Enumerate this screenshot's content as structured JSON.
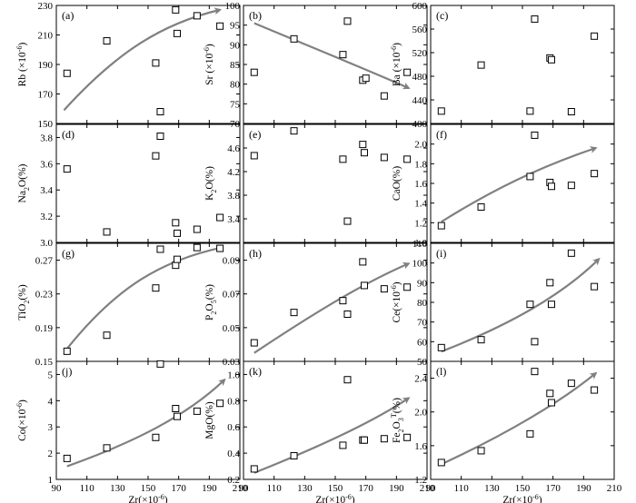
{
  "chart_data": [
    {
      "id": "a",
      "type": "scatter",
      "panel_label": "(a)",
      "ylabel": "Rb (×10⁻⁶)",
      "ylabel_main": "Rb (×10",
      "ylabel_sup": "-6",
      "ylabel_tail": ")",
      "ylim": [
        150,
        230
      ],
      "yticks": [
        150,
        170,
        190,
        210,
        230
      ],
      "xlim": [
        90,
        210
      ],
      "xticks": [
        90,
        110,
        130,
        150,
        170,
        190,
        210
      ],
      "xlabel": "",
      "points": [
        [
          97,
          184
        ],
        [
          123,
          206
        ],
        [
          155,
          191
        ],
        [
          158,
          158
        ],
        [
          168,
          227
        ],
        [
          169,
          211
        ],
        [
          182,
          223
        ],
        [
          197,
          216
        ]
      ],
      "trend": {
        "type": "curve",
        "points": [
          [
            95,
            159
          ],
          [
            130,
            199
          ],
          [
            160,
            218
          ],
          [
            197,
            227
          ]
        ]
      }
    },
    {
      "id": "b",
      "type": "scatter",
      "panel_label": "(b)",
      "ylabel": "Sr (×10⁻⁶)",
      "ylabel_main": "Sr (×10",
      "ylabel_sup": "-6",
      "ylabel_tail": ")",
      "ylim": [
        70,
        100
      ],
      "yticks": [
        70,
        75,
        80,
        85,
        90,
        95,
        100
      ],
      "xlim": [
        90,
        210
      ],
      "xticks": [
        90,
        110,
        130,
        150,
        170,
        190,
        210
      ],
      "xlabel": "",
      "points": [
        [
          97,
          83
        ],
        [
          123,
          91.5
        ],
        [
          155,
          87.5
        ],
        [
          158,
          96
        ],
        [
          168,
          81
        ],
        [
          170,
          81.5
        ],
        [
          182,
          77
        ],
        [
          197,
          83
        ]
      ],
      "trend": {
        "type": "curve",
        "points": [
          [
            97,
            95.5
          ],
          [
            140,
            88.5
          ],
          [
            175,
            83
          ],
          [
            198,
            79
          ]
        ]
      }
    },
    {
      "id": "c",
      "type": "scatter",
      "panel_label": "(c)",
      "ylabel": "Ba (×10⁻⁶)",
      "ylabel_main": "Ba (×10",
      "ylabel_sup": "-6",
      "ylabel_tail": ")",
      "ylim": [
        400,
        600
      ],
      "yticks": [
        400,
        440,
        480,
        520,
        560,
        600
      ],
      "xlim": [
        90,
        210
      ],
      "xticks": [
        90,
        110,
        130,
        150,
        170,
        190,
        210
      ],
      "xlabel": "",
      "points": [
        [
          97,
          421
        ],
        [
          123,
          499
        ],
        [
          155,
          421
        ],
        [
          158,
          577
        ],
        [
          168,
          511
        ],
        [
          169,
          508
        ],
        [
          182,
          420
        ],
        [
          197,
          548
        ]
      ],
      "trend": null
    },
    {
      "id": "d",
      "type": "scatter",
      "panel_label": "(d)",
      "ylabel": "Na₂O(%)",
      "ylabel_main": "Na",
      "ylabel_sub": "2",
      "ylabel_tail": "O(%)",
      "ylim": [
        3.0,
        3.9
      ],
      "yticks": [
        3.0,
        3.2,
        3.4,
        3.6,
        3.8
      ],
      "xlim": [
        90,
        210
      ],
      "xticks": [
        90,
        110,
        130,
        150,
        170,
        190,
        210
      ],
      "xlabel": "",
      "points": [
        [
          97,
          3.56
        ],
        [
          123,
          3.08
        ],
        [
          155,
          3.66
        ],
        [
          158,
          3.81
        ],
        [
          168,
          3.15
        ],
        [
          169,
          3.07
        ],
        [
          182,
          3.1
        ],
        [
          197,
          3.19
        ]
      ],
      "trend": null
    },
    {
      "id": "e",
      "type": "scatter",
      "panel_label": "(e)",
      "ylabel": "K₂O(%)",
      "ylabel_main": "K",
      "ylabel_sub": "2",
      "ylabel_tail": "O(%)",
      "ylim": [
        3.0,
        5.0
      ],
      "yticks": [
        3.4,
        3.8,
        4.2,
        4.6
      ],
      "xlim": [
        90,
        210
      ],
      "xticks": [
        90,
        110,
        130,
        150,
        170,
        190,
        210
      ],
      "xlabel": "",
      "points": [
        [
          97,
          4.47
        ],
        [
          123,
          4.89
        ],
        [
          155,
          4.41
        ],
        [
          158,
          3.36
        ],
        [
          168,
          4.66
        ],
        [
          169,
          4.52
        ],
        [
          182,
          4.44
        ],
        [
          197,
          4.41
        ]
      ],
      "trend": null
    },
    {
      "id": "f",
      "type": "scatter",
      "panel_label": "(f)",
      "ylabel": "CaO(%)",
      "ylabel_main": "CaO(%)",
      "ylim": [
        1.0,
        2.2
      ],
      "yticks": [
        1.0,
        1.2,
        1.4,
        1.6,
        1.8,
        2.0
      ],
      "xlim": [
        90,
        210
      ],
      "xticks": [
        90,
        110,
        130,
        150,
        170,
        190,
        210
      ],
      "xlabel": "",
      "points": [
        [
          97,
          1.17
        ],
        [
          123,
          1.36
        ],
        [
          155,
          1.67
        ],
        [
          158,
          2.09
        ],
        [
          168,
          1.61
        ],
        [
          169,
          1.57
        ],
        [
          182,
          1.58
        ],
        [
          197,
          1.7
        ]
      ],
      "trend": {
        "type": "curve",
        "points": [
          [
            97,
            1.21
          ],
          [
            130,
            1.53
          ],
          [
            160,
            1.76
          ],
          [
            198,
            1.96
          ]
        ]
      }
    },
    {
      "id": "g",
      "type": "scatter",
      "panel_label": "(g)",
      "ylabel": "TiO₂(%)",
      "ylabel_main": "TiO",
      "ylabel_sub": "2",
      "ylabel_tail": "(%)",
      "ylim": [
        0.15,
        0.29
      ],
      "yticks": [
        0.15,
        0.19,
        0.23,
        0.27
      ],
      "xlim": [
        90,
        210
      ],
      "xticks": [
        90,
        110,
        130,
        150,
        170,
        190,
        210
      ],
      "xlabel": "",
      "points": [
        [
          97,
          0.162
        ],
        [
          123,
          0.181
        ],
        [
          155,
          0.237
        ],
        [
          158,
          0.283
        ],
        [
          168,
          0.264
        ],
        [
          169,
          0.271
        ],
        [
          182,
          0.285
        ],
        [
          197,
          0.284
        ]
      ],
      "trend": {
        "type": "curve",
        "points": [
          [
            97,
            0.165
          ],
          [
            130,
            0.24
          ],
          [
            160,
            0.27
          ],
          [
            198,
            0.285
          ]
        ]
      }
    },
    {
      "id": "h",
      "type": "scatter",
      "panel_label": "(h)",
      "ylabel": "P₂O₅(%)",
      "ylabel_main": "P",
      "ylabel_sub": "2",
      "ylabel_mid": "O",
      "ylabel_sub2": "5",
      "ylabel_tail": "(%)",
      "ylim": [
        0.03,
        0.1
      ],
      "yticks": [
        0.03,
        0.05,
        0.07,
        0.09
      ],
      "xlim": [
        90,
        210
      ],
      "xticks": [
        90,
        110,
        130,
        150,
        170,
        190,
        210
      ],
      "xlabel": "",
      "points": [
        [
          97,
          0.041
        ],
        [
          123,
          0.059
        ],
        [
          155,
          0.066
        ],
        [
          158,
          0.058
        ],
        [
          168,
          0.089
        ],
        [
          169,
          0.075
        ],
        [
          182,
          0.073
        ],
        [
          197,
          0.074
        ]
      ],
      "trend": {
        "type": "curve",
        "points": [
          [
            97,
            0.035
          ],
          [
            140,
            0.061
          ],
          [
            170,
            0.077
          ],
          [
            198,
            0.088
          ]
        ]
      }
    },
    {
      "id": "i",
      "type": "scatter",
      "panel_label": "(i)",
      "ylabel": "Ce(×10⁻⁶)",
      "ylabel_main": "Ce(×10",
      "ylabel_sup": "-6",
      "ylabel_tail": ")",
      "ylim": [
        50,
        110
      ],
      "yticks": [
        50,
        60,
        70,
        80,
        90,
        100,
        110
      ],
      "xlim": [
        90,
        210
      ],
      "xticks": [
        90,
        110,
        130,
        150,
        170,
        190,
        210
      ],
      "xlabel": "",
      "points": [
        [
          97,
          57
        ],
        [
          123,
          61
        ],
        [
          155,
          79
        ],
        [
          158,
          60
        ],
        [
          168,
          90
        ],
        [
          169,
          79
        ],
        [
          182,
          105
        ],
        [
          197,
          88
        ]
      ],
      "trend": {
        "type": "curve",
        "points": [
          [
            97,
            55
          ],
          [
            140,
            68
          ],
          [
            175,
            83
          ],
          [
            200,
            102
          ]
        ]
      }
    },
    {
      "id": "j",
      "type": "scatter",
      "panel_label": "(j)",
      "ylabel": "Co(×10⁻⁶)",
      "ylabel_main": "Co(×10",
      "ylabel_sup": "-6",
      "ylabel_tail": ")",
      "ylim": [
        1,
        5.5
      ],
      "yticks": [
        1,
        2,
        3,
        4,
        5
      ],
      "xlim": [
        90,
        210
      ],
      "xticks": [
        90,
        110,
        130,
        150,
        170,
        190,
        210
      ],
      "xlabel": "Zr(×10⁻⁶)",
      "xlabel_main": "Zr(×10",
      "xlabel_sup": "-6",
      "xlabel_tail": ")",
      "points": [
        [
          97,
          1.8
        ],
        [
          123,
          2.2
        ],
        [
          155,
          2.6
        ],
        [
          158,
          5.4
        ],
        [
          168,
          3.7
        ],
        [
          169,
          3.4
        ],
        [
          182,
          3.6
        ],
        [
          197,
          3.9
        ]
      ],
      "trend": {
        "type": "curve",
        "points": [
          [
            97,
            1.5
          ],
          [
            140,
            2.4
          ],
          [
            175,
            3.4
          ],
          [
            200,
            4.8
          ]
        ]
      }
    },
    {
      "id": "k",
      "type": "scatter",
      "panel_label": "(k)",
      "ylabel": "MgO(%)",
      "ylabel_main": "MgO(%)",
      "ylim": [
        0.2,
        1.1
      ],
      "yticks": [
        0.2,
        0.4,
        0.6,
        0.8,
        1.0
      ],
      "xlim": [
        90,
        210
      ],
      "xticks": [
        90,
        110,
        130,
        150,
        170,
        190,
        210
      ],
      "xlabel": "Zr(×10⁻⁶)",
      "xlabel_main": "Zr(×10",
      "xlabel_sup": "-6",
      "xlabel_tail": ")",
      "points": [
        [
          97,
          0.28
        ],
        [
          123,
          0.38
        ],
        [
          155,
          0.46
        ],
        [
          158,
          0.96
        ],
        [
          168,
          0.5
        ],
        [
          169,
          0.5
        ],
        [
          182,
          0.51
        ],
        [
          197,
          0.52
        ]
      ],
      "trend": {
        "type": "curve",
        "points": [
          [
            97,
            0.25
          ],
          [
            140,
            0.45
          ],
          [
            175,
            0.64
          ],
          [
            198,
            0.82
          ]
        ]
      }
    },
    {
      "id": "l",
      "type": "scatter",
      "panel_label": "(l)",
      "ylabel": "Fe₂O₃ᵀ(%)",
      "ylabel_main": "Fe",
      "ylabel_sub": "2",
      "ylabel_mid": "O",
      "ylabel_sub2": "3",
      "ylabel_sup": "T",
      "ylabel_tail": "(%)",
      "ylim": [
        1.2,
        2.6
      ],
      "yticks": [
        1.2,
        1.6,
        2.0,
        2.4
      ],
      "xlim": [
        90,
        210
      ],
      "xticks": [
        90,
        110,
        130,
        150,
        170,
        190,
        210
      ],
      "xlabel": "Zr(×10⁻⁶)",
      "xlabel_main": "Zr(×10",
      "xlabel_sup": "-6",
      "xlabel_tail": ")",
      "points": [
        [
          97,
          1.4
        ],
        [
          123,
          1.54
        ],
        [
          155,
          1.74
        ],
        [
          158,
          2.48
        ],
        [
          168,
          2.22
        ],
        [
          169,
          2.11
        ],
        [
          182,
          2.34
        ],
        [
          197,
          2.26
        ]
      ],
      "trend": {
        "type": "curve",
        "points": [
          [
            97,
            1.38
          ],
          [
            140,
            1.74
          ],
          [
            175,
            2.12
          ],
          [
            198,
            2.46
          ]
        ]
      }
    }
  ],
  "colors": {
    "trend_arrow": "#808080",
    "axis": "#000000",
    "marker": "#000000"
  }
}
